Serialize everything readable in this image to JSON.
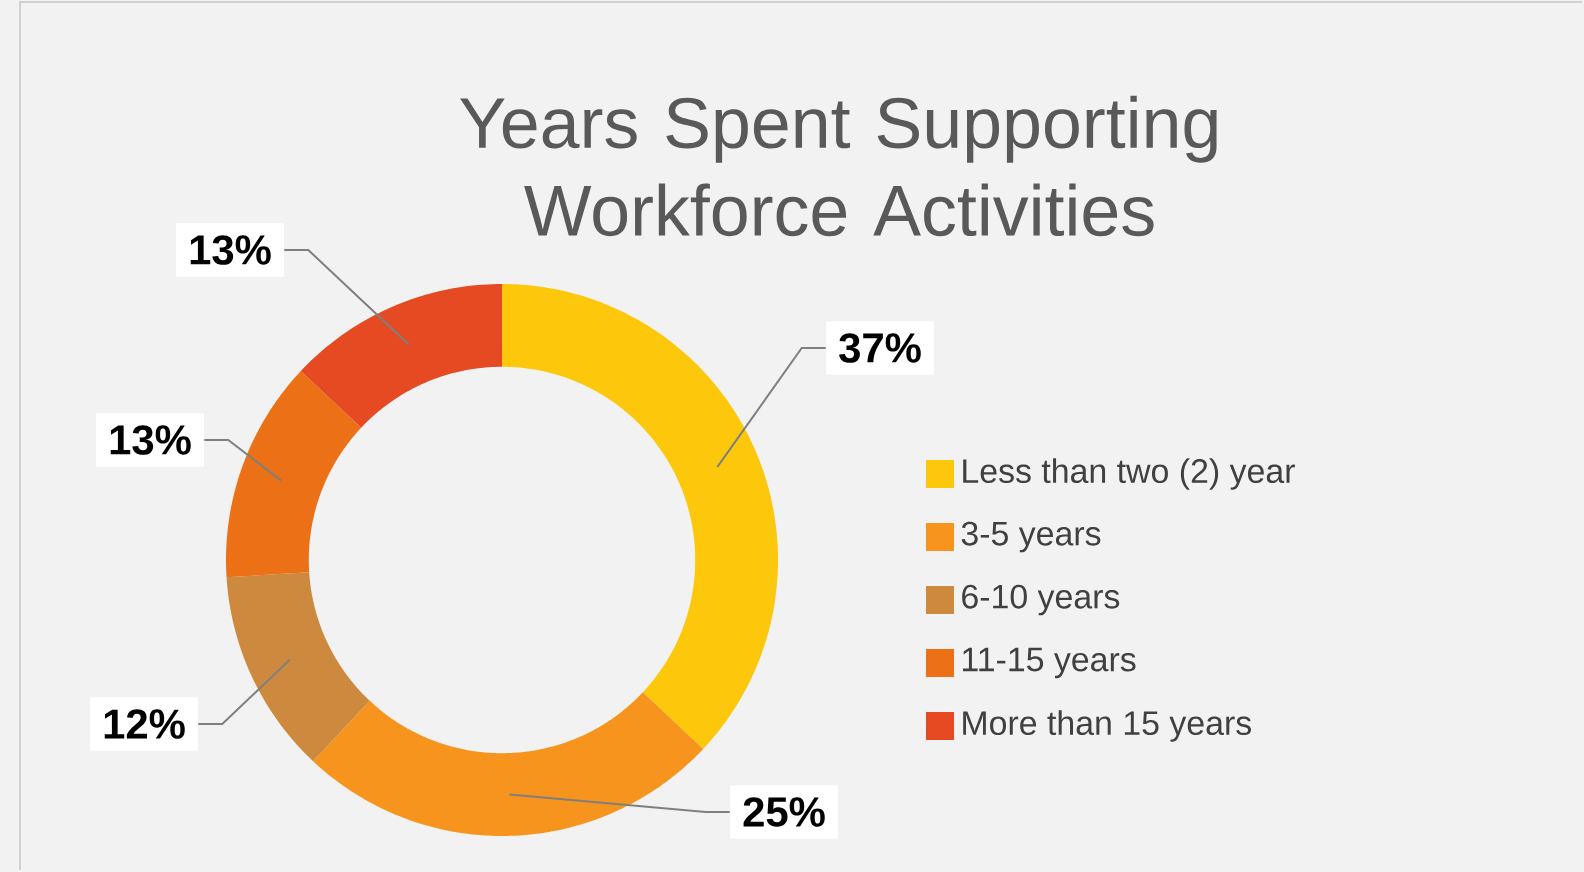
{
  "chart_data": {
    "type": "donut",
    "title": "Years Spent Supporting Workforce Activities",
    "categories": [
      "Less than two (2) year",
      "3-5 years",
      "6-10 years",
      "11-15 years",
      "More than 15 years"
    ],
    "values": [
      37,
      25,
      12,
      13,
      13
    ],
    "colors": [
      "#fdc80c",
      "#f7941d",
      "#cd8a3e",
      "#eb7016",
      "#e54a23"
    ],
    "value_labels": [
      "37%",
      "25%",
      "12%",
      "13%",
      "13%"
    ],
    "legend": "right"
  }
}
